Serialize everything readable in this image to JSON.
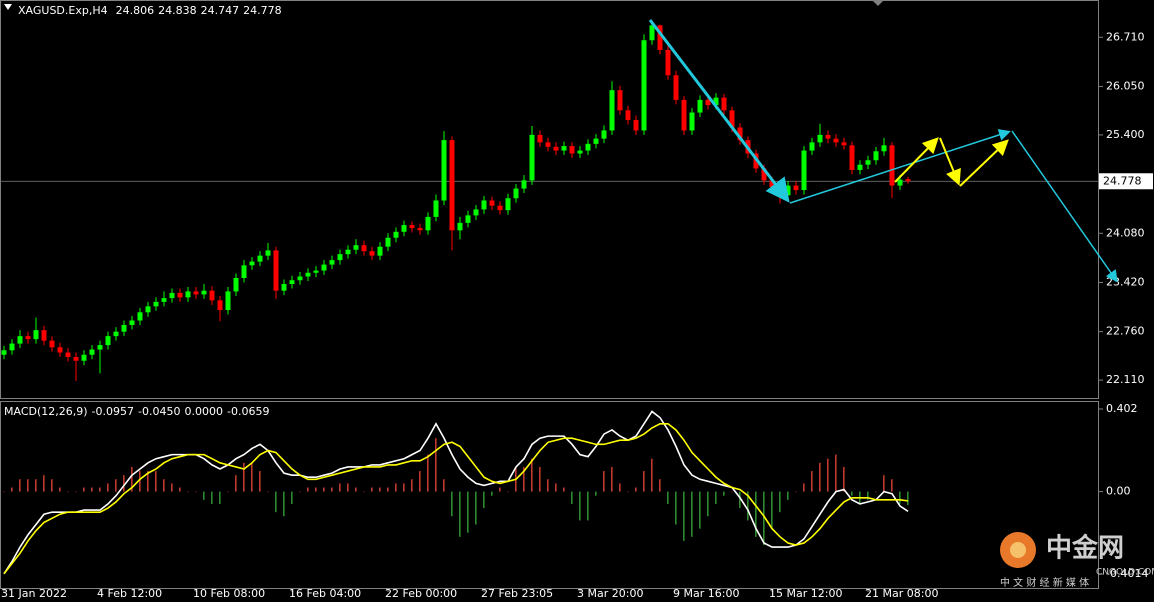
{
  "chart_data": [
    {
      "type": "candlestick",
      "header": {
        "symbol": "XAGUSD.Exp,H4",
        "values": [
          24.806,
          24.838,
          24.747,
          24.778
        ]
      },
      "current_price": 24.778,
      "up_color": "#00ff00",
      "down_color": "#ff0000",
      "categories": [
        "31 Jan 2022",
        null,
        null,
        null,
        null,
        null,
        null,
        null,
        null,
        null,
        null,
        null,
        "4 Feb 12:00",
        null,
        null,
        null,
        null,
        null,
        null,
        null,
        null,
        null,
        null,
        null,
        "10 Feb 08:00",
        null,
        null,
        null,
        null,
        null,
        null,
        null,
        null,
        null,
        null,
        null,
        "16 Feb 04:00",
        null,
        null,
        null,
        null,
        null,
        null,
        null,
        null,
        null,
        null,
        null,
        "22 Feb 00:00",
        null,
        null,
        null,
        null,
        null,
        null,
        null,
        null,
        null,
        null,
        null,
        "27 Feb 23:05",
        null,
        null,
        null,
        null,
        null,
        null,
        null,
        null,
        null,
        null,
        null,
        "3 Mar 20:00",
        null,
        null,
        null,
        null,
        null,
        null,
        null,
        null,
        null,
        null,
        null,
        "9 Mar 16:00",
        null,
        null,
        null,
        null,
        null,
        null,
        null,
        null,
        null,
        null,
        null,
        "15 Mar 12:00",
        null,
        null,
        null,
        null,
        null,
        null,
        null,
        null,
        null,
        null,
        null,
        "21 Mar 08:00",
        null,
        null,
        null,
        null,
        null
      ],
      "open": [
        22.45,
        22.51,
        22.6,
        22.7,
        22.66,
        22.78,
        22.64,
        22.55,
        22.48,
        22.42,
        22.37,
        22.45,
        22.52,
        22.58,
        22.7,
        22.76,
        22.85,
        22.91,
        23.02,
        23.1,
        23.16,
        23.21,
        23.28,
        23.22,
        23.3,
        23.26,
        23.31,
        23.18,
        23.05,
        23.3,
        23.48,
        23.65,
        23.7,
        23.78,
        23.85,
        23.31,
        23.4,
        23.45,
        23.5,
        23.55,
        23.58,
        23.66,
        23.72,
        23.8,
        23.86,
        23.92,
        23.84,
        23.78,
        23.9,
        24.02,
        24.1,
        24.19,
        24.15,
        24.12,
        24.3,
        24.52,
        25.33,
        24.12,
        24.22,
        24.32,
        24.4,
        24.52,
        24.45,
        24.39,
        24.55,
        24.68,
        24.79,
        25.4,
        25.3,
        25.24,
        25.19,
        25.25,
        25.15,
        25.19,
        25.28,
        25.35,
        25.46,
        26.0,
        25.73,
        25.6,
        25.46,
        26.67,
        26.87,
        26.54,
        26.2,
        25.87,
        25.46,
        25.7,
        25.87,
        25.8,
        25.9,
        25.73,
        25.5,
        25.33,
        25.15,
        24.95,
        24.79,
        24.7,
        24.59,
        24.72,
        24.66,
        25.19,
        25.3,
        25.4,
        25.35,
        25.3,
        25.26,
        24.93,
        25.0,
        25.06,
        25.18,
        25.26,
        24.72,
        24.806
      ],
      "high": [
        22.57,
        22.66,
        22.78,
        22.76,
        22.95,
        22.84,
        22.7,
        22.61,
        22.54,
        22.48,
        22.51,
        22.58,
        22.64,
        22.76,
        22.82,
        22.91,
        22.97,
        23.08,
        23.16,
        23.22,
        23.3,
        23.34,
        23.34,
        23.36,
        23.36,
        23.4,
        23.37,
        23.24,
        23.36,
        23.54,
        23.72,
        23.76,
        23.84,
        23.95,
        23.9,
        23.46,
        23.51,
        23.56,
        23.61,
        23.64,
        23.72,
        23.78,
        23.86,
        23.92,
        24.0,
        23.98,
        23.9,
        23.96,
        24.08,
        24.16,
        24.25,
        24.24,
        24.21,
        24.36,
        24.6,
        25.45,
        25.38,
        24.3,
        24.38,
        24.46,
        24.58,
        24.57,
        24.51,
        24.61,
        24.74,
        24.86,
        25.52,
        25.46,
        25.36,
        25.3,
        25.31,
        25.3,
        25.25,
        25.34,
        25.41,
        25.53,
        26.12,
        26.06,
        25.79,
        25.66,
        26.75,
        26.9,
        26.88,
        26.6,
        26.26,
        25.92,
        25.76,
        25.93,
        25.92,
        25.96,
        25.95,
        25.78,
        25.56,
        25.38,
        25.2,
        25.0,
        24.84,
        24.76,
        24.78,
        24.78,
        25.25,
        25.36,
        25.55,
        25.46,
        25.41,
        25.36,
        25.31,
        25.06,
        25.12,
        25.24,
        25.36,
        25.3,
        24.86,
        24.838
      ],
      "low": [
        22.39,
        22.45,
        22.54,
        22.6,
        22.6,
        22.58,
        22.49,
        22.42,
        22.36,
        22.1,
        22.31,
        22.39,
        22.2,
        22.52,
        22.64,
        22.7,
        22.79,
        22.85,
        22.96,
        23.04,
        23.1,
        23.15,
        23.16,
        23.16,
        23.2,
        23.2,
        23.12,
        22.9,
        22.99,
        23.24,
        23.42,
        23.59,
        23.64,
        23.72,
        23.2,
        23.25,
        23.34,
        23.39,
        23.44,
        23.49,
        23.52,
        23.6,
        23.66,
        23.74,
        23.8,
        23.78,
        23.72,
        23.72,
        23.84,
        23.96,
        24.04,
        24.09,
        24.06,
        24.06,
        24.24,
        24.46,
        23.85,
        24.0,
        24.16,
        24.26,
        24.34,
        24.39,
        24.33,
        24.33,
        24.49,
        24.62,
        24.73,
        25.24,
        25.18,
        25.13,
        25.13,
        25.09,
        25.09,
        25.13,
        25.22,
        25.29,
        25.4,
        25.67,
        25.54,
        25.4,
        25.4,
        26.61,
        26.48,
        26.14,
        25.81,
        25.4,
        25.4,
        25.64,
        25.74,
        25.74,
        25.67,
        25.44,
        25.27,
        25.09,
        24.89,
        24.73,
        24.64,
        24.48,
        24.53,
        24.6,
        24.6,
        25.13,
        25.24,
        25.29,
        25.24,
        25.2,
        24.87,
        24.87,
        24.94,
        25.0,
        25.12,
        24.55,
        24.66,
        24.747
      ],
      "close": [
        22.51,
        22.6,
        22.7,
        22.66,
        22.78,
        22.64,
        22.55,
        22.48,
        22.42,
        22.37,
        22.45,
        22.52,
        22.58,
        22.7,
        22.76,
        22.85,
        22.91,
        23.02,
        23.1,
        23.16,
        23.21,
        23.28,
        23.22,
        23.3,
        23.26,
        23.31,
        23.18,
        23.05,
        23.3,
        23.48,
        23.65,
        23.7,
        23.78,
        23.85,
        23.31,
        23.4,
        23.45,
        23.5,
        23.55,
        23.58,
        23.66,
        23.72,
        23.8,
        23.86,
        23.92,
        23.84,
        23.78,
        23.9,
        24.02,
        24.1,
        24.19,
        24.15,
        24.12,
        24.3,
        24.52,
        25.33,
        24.12,
        24.22,
        24.32,
        24.4,
        24.52,
        24.45,
        24.39,
        24.55,
        24.68,
        24.79,
        25.4,
        25.3,
        25.24,
        25.19,
        25.25,
        25.15,
        25.19,
        25.28,
        25.35,
        25.46,
        26.0,
        25.73,
        25.6,
        25.46,
        26.67,
        26.87,
        26.54,
        26.2,
        25.87,
        25.46,
        25.7,
        25.87,
        25.8,
        25.9,
        25.73,
        25.5,
        25.33,
        25.15,
        24.95,
        24.79,
        24.7,
        24.59,
        24.72,
        24.66,
        25.19,
        25.3,
        25.4,
        25.35,
        25.3,
        25.26,
        24.93,
        25.0,
        25.06,
        25.18,
        25.26,
        24.72,
        24.8,
        24.778
      ],
      "ylim": [
        21.87,
        27.21
      ],
      "yticks": [
        {
          "value": 26.71,
          "label": "26.710"
        },
        {
          "value": 26.05,
          "label": "26.050"
        },
        {
          "value": 25.4,
          "label": "25.400"
        },
        {
          "value": 24.08,
          "label": "24.080"
        },
        {
          "value": 23.42,
          "label": "23.420"
        },
        {
          "value": 22.76,
          "label": "22.760"
        },
        {
          "value": 22.11,
          "label": "22.110"
        }
      ]
    },
    {
      "type": "macd",
      "label": "MACD(12,26,9)",
      "values": [
        -0.0957,
        -0.045,
        0,
        -0.0659
      ],
      "value_labels": [
        "-0.0957",
        "-0.0450",
        "0.0000",
        "-0.0659"
      ],
      "series": [
        {
          "color": "#ffffff",
          "values": [
            -0.4,
            -0.34,
            -0.27,
            -0.21,
            -0.16,
            -0.11,
            -0.1,
            -0.1,
            -0.1,
            -0.1,
            -0.09,
            -0.09,
            -0.09,
            -0.06,
            -0.02,
            0.03,
            0.08,
            0.11,
            0.14,
            0.16,
            0.17,
            0.18,
            0.18,
            0.18,
            0.18,
            0.16,
            0.13,
            0.11,
            0.13,
            0.16,
            0.18,
            0.21,
            0.23,
            0.2,
            0.14,
            0.09,
            0.08,
            0.08,
            0.07,
            0.07,
            0.08,
            0.09,
            0.11,
            0.12,
            0.12,
            0.12,
            0.13,
            0.13,
            0.14,
            0.15,
            0.16,
            0.18,
            0.2,
            0.26,
            0.33,
            0.26,
            0.18,
            0.11,
            0.07,
            0.04,
            0.03,
            0.04,
            0.05,
            0.05,
            0.12,
            0.16,
            0.23,
            0.26,
            0.27,
            0.27,
            0.27,
            0.23,
            0.18,
            0.17,
            0.22,
            0.28,
            0.3,
            0.27,
            0.25,
            0.27,
            0.33,
            0.39,
            0.36,
            0.3,
            0.22,
            0.13,
            0.08,
            0.06,
            0.05,
            0.04,
            0.03,
            0.02,
            -0.03,
            -0.09,
            -0.18,
            -0.25,
            -0.27,
            -0.27,
            -0.27,
            -0.26,
            -0.23,
            -0.17,
            -0.11,
            -0.05,
            0.0,
            0.01,
            -0.04,
            -0.06,
            -0.05,
            -0.04,
            0.0,
            -0.01,
            -0.07,
            -0.0957
          ]
        },
        {
          "color": "#ffff00",
          "values": [
            -0.4,
            -0.35,
            -0.3,
            -0.24,
            -0.19,
            -0.15,
            -0.13,
            -0.11,
            -0.1,
            -0.1,
            -0.1,
            -0.1,
            -0.1,
            -0.08,
            -0.05,
            -0.01,
            0.02,
            0.06,
            0.09,
            0.11,
            0.14,
            0.16,
            0.17,
            0.18,
            0.18,
            0.18,
            0.16,
            0.14,
            0.13,
            0.12,
            0.11,
            0.14,
            0.18,
            0.2,
            0.19,
            0.15,
            0.11,
            0.08,
            0.06,
            0.06,
            0.07,
            0.08,
            0.09,
            0.1,
            0.11,
            0.12,
            0.12,
            0.12,
            0.13,
            0.13,
            0.14,
            0.15,
            0.15,
            0.17,
            0.2,
            0.23,
            0.24,
            0.22,
            0.17,
            0.12,
            0.07,
            0.05,
            0.04,
            0.05,
            0.06,
            0.1,
            0.15,
            0.2,
            0.24,
            0.25,
            0.26,
            0.26,
            0.25,
            0.24,
            0.23,
            0.23,
            0.24,
            0.25,
            0.25,
            0.26,
            0.28,
            0.31,
            0.33,
            0.33,
            0.3,
            0.25,
            0.19,
            0.15,
            0.11,
            0.07,
            0.04,
            0.02,
            0.01,
            -0.02,
            -0.07,
            -0.12,
            -0.18,
            -0.22,
            -0.25,
            -0.26,
            -0.25,
            -0.22,
            -0.18,
            -0.13,
            -0.09,
            -0.05,
            -0.03,
            -0.03,
            -0.03,
            -0.04,
            -0.04,
            -0.04,
            -0.04,
            -0.045
          ]
        }
      ],
      "histogram": {
        "up_color": "#c0392b",
        "down_color": "#2e8b2e",
        "values": [
          0.0,
          0.02,
          0.06,
          0.06,
          0.06,
          0.08,
          0.06,
          0.02,
          0.0,
          0.0,
          0.02,
          0.02,
          0.02,
          0.04,
          0.06,
          0.08,
          0.12,
          0.1,
          0.1,
          0.1,
          0.06,
          0.04,
          0.02,
          0.0,
          0.0,
          -0.04,
          -0.06,
          -0.06,
          0.0,
          0.08,
          0.14,
          0.14,
          0.1,
          0.0,
          -0.1,
          -0.12,
          -0.06,
          0.0,
          0.02,
          0.02,
          0.02,
          0.02,
          0.04,
          0.04,
          0.02,
          0.0,
          0.02,
          0.02,
          0.02,
          0.04,
          0.04,
          0.06,
          0.1,
          0.18,
          0.26,
          0.06,
          -0.12,
          -0.22,
          -0.2,
          -0.16,
          -0.08,
          -0.02,
          0.02,
          0.0,
          0.12,
          0.12,
          0.16,
          0.12,
          0.06,
          0.04,
          0.02,
          -0.06,
          -0.14,
          -0.14,
          -0.02,
          0.1,
          0.12,
          0.04,
          0.0,
          0.02,
          0.1,
          0.16,
          0.06,
          -0.06,
          -0.16,
          -0.24,
          -0.22,
          -0.18,
          -0.12,
          -0.06,
          -0.02,
          0.0,
          -0.08,
          -0.14,
          -0.22,
          -0.26,
          -0.18,
          -0.1,
          -0.04,
          0.0,
          0.04,
          0.1,
          0.14,
          0.16,
          0.18,
          0.12,
          -0.02,
          -0.06,
          -0.04,
          0.0,
          0.08,
          0.06,
          -0.06,
          -0.0659
        ]
      },
      "ylim": [
        -0.469,
        0.436
      ],
      "yticks": [
        0.402,
        {
          "value": 0,
          "label": "0.00"
        },
        -0.4014
      ]
    }
  ],
  "watermark": {
    "name": "中金网",
    "domain": "CNGOLD.COM",
    "slogan": "中 文 财 经 新 媒 体"
  }
}
